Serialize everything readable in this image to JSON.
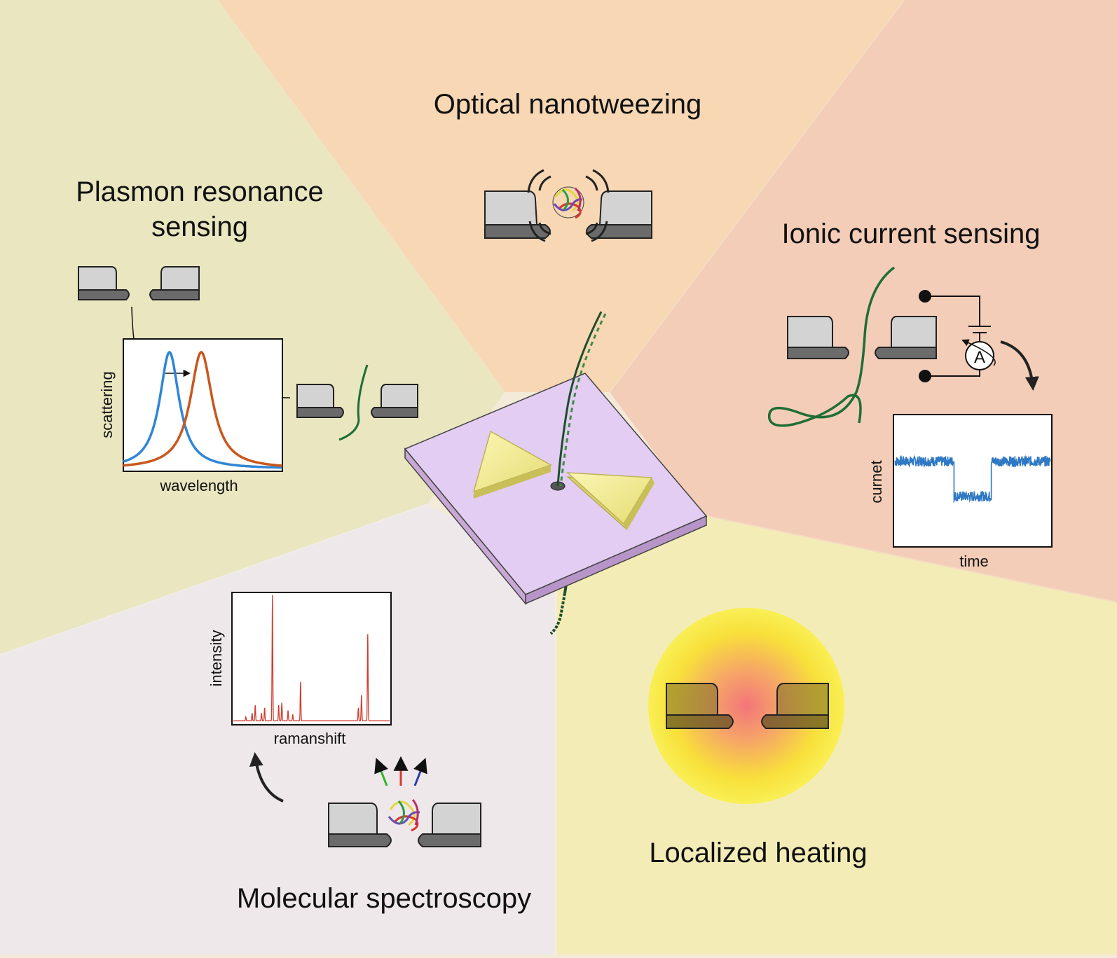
{
  "sections": {
    "optical": {
      "title": "Optical nanotweezing"
    },
    "plasmon": {
      "title_line1": "Plasmon resonance",
      "title_line2": "sensing",
      "xlabel": "wavelength",
      "ylabel": "scattering"
    },
    "ionic": {
      "title": "Ionic current sensing",
      "xlabel": "time",
      "ylabel": "curnet",
      "ammeter_label": "A"
    },
    "spectroscopy": {
      "title": "Molecular spectroscopy",
      "xlabel": "ramanshift",
      "ylabel": "intensity"
    },
    "heating": {
      "title": "Localized heating"
    }
  },
  "colors": {
    "optical_bg": "#f7d7b4",
    "plasmon_bg": "#e9e6bf",
    "ionic_bg": "#f3cdb7",
    "spectroscopy_bg": "#efe8ea",
    "heating_bg": "#f3ecb5",
    "membrane": "#e3cdf2",
    "gold": "#f2eb97",
    "dna_green": "#1e6e36",
    "blue_curve": "#2f86d6",
    "orange_curve": "#c9571d",
    "raman_red": "#d23b2b"
  },
  "chart_data": [
    {
      "type": "line",
      "xlabel": "wavelength",
      "ylabel": "scattering",
      "xlim": [
        0,
        1
      ],
      "ylim": [
        0,
        1.1
      ],
      "series": [
        {
          "shape": "lorentzian",
          "center": 0.29,
          "width": 0.075,
          "peak": 0.97,
          "color": "#2f86d6"
        },
        {
          "shape": "lorentzian",
          "center": 0.49,
          "width": 0.085,
          "peak": 0.97,
          "color": "#c9571d"
        }
      ]
    },
    {
      "type": "line",
      "xlabel": "time",
      "ylabel": "curnet",
      "xlim": [
        0,
        1
      ],
      "ylim": [
        0,
        1
      ],
      "segments": [
        {
          "x": [
            0.0,
            0.38
          ],
          "level": 0.65
        },
        {
          "x": [
            0.38,
            0.62
          ],
          "level": 0.38
        },
        {
          "x": [
            0.62,
            1.0
          ],
          "level": 0.65
        }
      ]
    },
    {
      "type": "line",
      "xlabel": "ramanshift",
      "ylabel": "intensity",
      "xlim": [
        0,
        1
      ],
      "ylim": [
        0,
        1
      ],
      "peaks": [
        {
          "x": 0.08,
          "h": 0.03
        },
        {
          "x": 0.12,
          "h": 0.06
        },
        {
          "x": 0.14,
          "h": 0.12
        },
        {
          "x": 0.18,
          "h": 0.06
        },
        {
          "x": 0.2,
          "h": 0.1
        },
        {
          "x": 0.25,
          "h": 0.97
        },
        {
          "x": 0.29,
          "h": 0.12
        },
        {
          "x": 0.31,
          "h": 0.14
        },
        {
          "x": 0.35,
          "h": 0.08
        },
        {
          "x": 0.38,
          "h": 0.05
        },
        {
          "x": 0.43,
          "h": 0.3
        },
        {
          "x": 0.8,
          "h": 0.1
        },
        {
          "x": 0.82,
          "h": 0.2
        },
        {
          "x": 0.86,
          "h": 0.67
        }
      ]
    }
  ]
}
